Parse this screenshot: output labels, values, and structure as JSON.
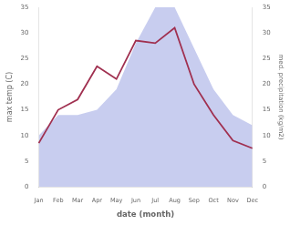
{
  "chart_data": {
    "type": "line",
    "xlabel": "date (month)",
    "ylabel": "max temp (C)",
    "y2label": "med. precipitation (kg/m2)",
    "categories": [
      "Jan",
      "Feb",
      "Mar",
      "Apr",
      "May",
      "Jun",
      "Jul",
      "Aug",
      "Sep",
      "Oct",
      "Nov",
      "Dec"
    ],
    "series": [
      {
        "type": "area",
        "color": "#b0b8e8",
        "axis": "y2",
        "values": [
          10,
          14,
          14,
          15,
          19,
          28,
          35,
          35,
          27,
          19,
          14,
          12
        ]
      },
      {
        "type": "line",
        "color": "#a03050",
        "values": [
          8.5,
          15.0,
          17.0,
          23.5,
          21.0,
          28.5,
          28.0,
          31.0,
          20.0,
          14.0,
          9.0,
          7.5
        ]
      }
    ],
    "ylim": [
      0,
      35
    ],
    "yticks": [
      0,
      5,
      10,
      15,
      20,
      25,
      30,
      35
    ],
    "y2lim": [
      0,
      35
    ],
    "y2ticks": [
      0,
      5,
      10,
      15,
      20,
      25,
      30,
      35
    ],
    "grid": false
  }
}
